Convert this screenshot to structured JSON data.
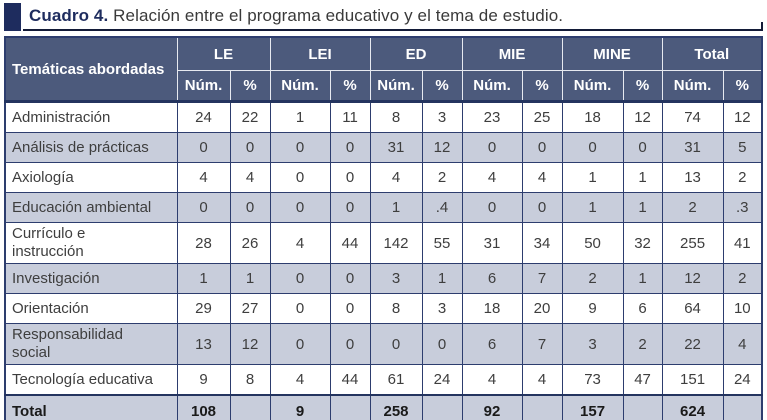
{
  "title": {
    "caption_label": "Cuadro 4.",
    "caption_text": " Relación entre el programa educativo y el tema de estudio."
  },
  "colors": {
    "accent_navy": "#1e2c5e",
    "header_background": "#4c5a7c",
    "header_text": "#ffffff",
    "grid_border": "#2d3d6e",
    "shaded_row": "#c8cddb",
    "body_text": "#3e3e3e"
  },
  "table": {
    "corner_label": "Temáticas abordadas",
    "groups": [
      "LE",
      "LEI",
      "ED",
      "MIE",
      "MINE",
      "Total"
    ],
    "sub_headers": [
      "Núm.",
      "%"
    ],
    "rows": [
      {
        "label": "Administración",
        "values": [
          "24",
          "22",
          "1",
          "11",
          "8",
          "3",
          "23",
          "25",
          "18",
          "12",
          "74",
          "12"
        ]
      },
      {
        "label": "Análisis de prácticas",
        "values": [
          "0",
          "0",
          "0",
          "0",
          "31",
          "12",
          "0",
          "0",
          "0",
          "0",
          "31",
          "5"
        ]
      },
      {
        "label": "Axiología",
        "values": [
          "4",
          "4",
          "0",
          "0",
          "4",
          "2",
          "4",
          "4",
          "1",
          "1",
          "13",
          "2"
        ]
      },
      {
        "label": "Educación ambiental",
        "values": [
          "0",
          "0",
          "0",
          "0",
          "1",
          ".4",
          "0",
          "0",
          "1",
          "1",
          "2",
          ".3"
        ]
      },
      {
        "label": "Currículo e\ninstrucción",
        "values": [
          "28",
          "26",
          "4",
          "44",
          "142",
          "55",
          "31",
          "34",
          "50",
          "32",
          "255",
          "41"
        ]
      },
      {
        "label": "Investigación",
        "values": [
          "1",
          "1",
          "0",
          "0",
          "3",
          "1",
          "6",
          "7",
          "2",
          "1",
          "12",
          "2"
        ]
      },
      {
        "label": "Orientación",
        "values": [
          "29",
          "27",
          "0",
          "0",
          "8",
          "3",
          "18",
          "20",
          "9",
          "6",
          "64",
          "10"
        ]
      },
      {
        "label": "Responsabilidad\nsocial",
        "values": [
          "13",
          "12",
          "0",
          "0",
          "0",
          "0",
          "6",
          "7",
          "3",
          "2",
          "22",
          "4"
        ]
      },
      {
        "label": "Tecnología educativa",
        "values": [
          "9",
          "8",
          "4",
          "44",
          "61",
          "24",
          "4",
          "4",
          "73",
          "47",
          "151",
          "24"
        ]
      },
      {
        "label": "Total",
        "is_total": true,
        "values": [
          "108",
          "",
          "9",
          "",
          "258",
          "",
          "92",
          "",
          "157",
          "",
          "624",
          ""
        ]
      }
    ]
  }
}
